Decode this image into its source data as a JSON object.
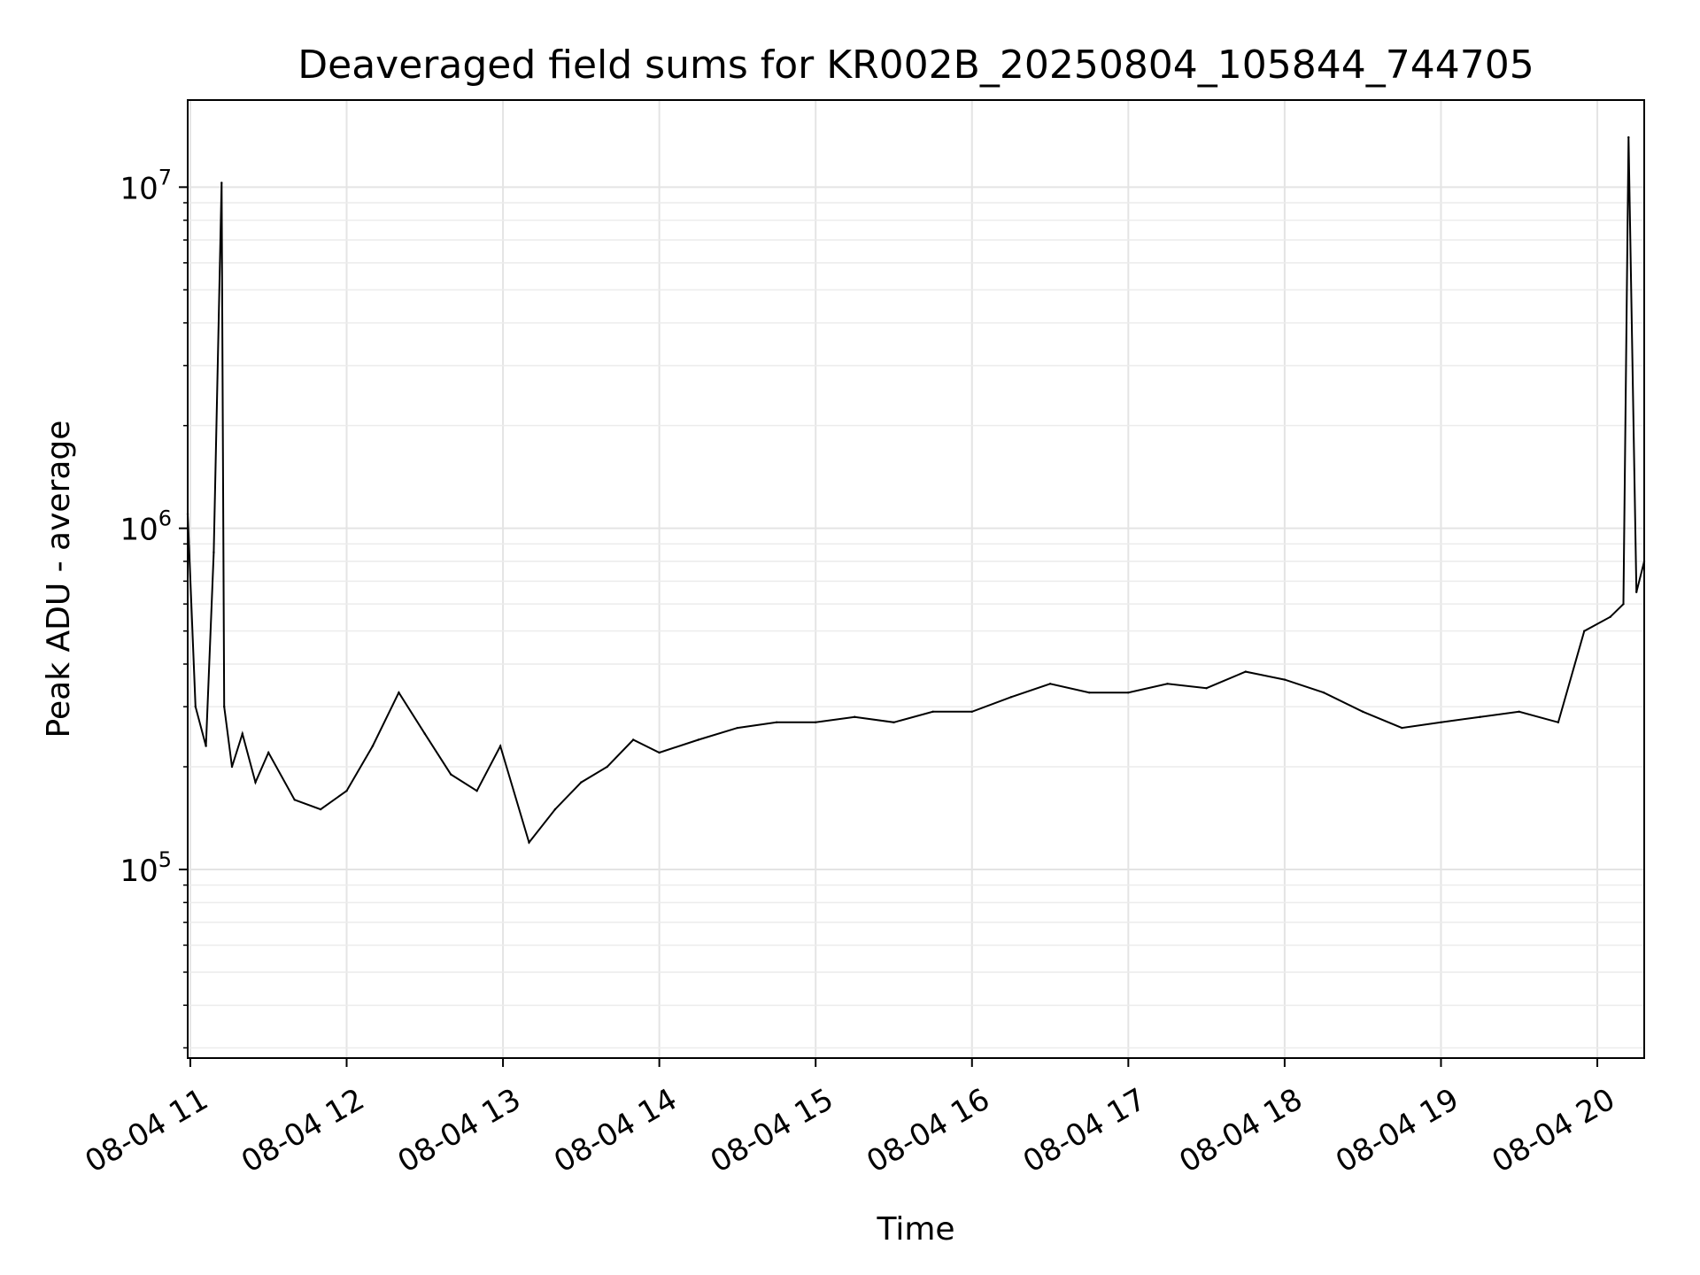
{
  "chart_data": {
    "type": "line",
    "title": "Deaveraged field sums for KR002B_20250804_105844_744705",
    "xlabel": "Time",
    "ylabel": "Peak ADU - average",
    "y_scale": "log",
    "ylim": [
      28000,
      18000000
    ],
    "xlim": [
      "2025-08-04 10:59",
      "2025-08-04 20:18"
    ],
    "x_ticks": [
      {
        "t": "2025-08-04 11:00",
        "label": "08-04 11"
      },
      {
        "t": "2025-08-04 12:00",
        "label": "08-04 12"
      },
      {
        "t": "2025-08-04 13:00",
        "label": "08-04 13"
      },
      {
        "t": "2025-08-04 14:00",
        "label": "08-04 14"
      },
      {
        "t": "2025-08-04 15:00",
        "label": "08-04 15"
      },
      {
        "t": "2025-08-04 16:00",
        "label": "08-04 16"
      },
      {
        "t": "2025-08-04 17:00",
        "label": "08-04 17"
      },
      {
        "t": "2025-08-04 18:00",
        "label": "08-04 18"
      },
      {
        "t": "2025-08-04 19:00",
        "label": "08-04 19"
      },
      {
        "t": "2025-08-04 20:00",
        "label": "08-04 20"
      }
    ],
    "y_ticks": [
      {
        "value": 100000,
        "base": "10",
        "exp": "5"
      },
      {
        "value": 1000000,
        "base": "10",
        "exp": "6"
      },
      {
        "value": 10000000,
        "base": "10",
        "exp": "7"
      }
    ],
    "grid": true,
    "legend": "none",
    "line_color": "#000000",
    "series": [
      {
        "x": [
          "2025-08-04 10:59",
          "2025-08-04 11:02",
          "2025-08-04 11:06",
          "2025-08-04 11:09",
          "2025-08-04 11:12",
          "2025-08-04 11:13",
          "2025-08-04 11:16",
          "2025-08-04 11:20",
          "2025-08-04 11:25",
          "2025-08-04 11:30",
          "2025-08-04 11:40",
          "2025-08-04 11:50",
          "2025-08-04 12:00",
          "2025-08-04 12:10",
          "2025-08-04 12:20",
          "2025-08-04 12:30",
          "2025-08-04 12:40",
          "2025-08-04 12:50",
          "2025-08-04 12:59",
          "2025-08-04 13:10",
          "2025-08-04 13:20",
          "2025-08-04 13:30",
          "2025-08-04 13:40",
          "2025-08-04 13:50",
          "2025-08-04 14:00",
          "2025-08-04 14:15",
          "2025-08-04 14:30",
          "2025-08-04 14:45",
          "2025-08-04 15:00",
          "2025-08-04 15:15",
          "2025-08-04 15:30",
          "2025-08-04 15:45",
          "2025-08-04 16:00",
          "2025-08-04 16:15",
          "2025-08-04 16:30",
          "2025-08-04 16:45",
          "2025-08-04 17:00",
          "2025-08-04 17:15",
          "2025-08-04 17:30",
          "2025-08-04 17:45",
          "2025-08-04 18:00",
          "2025-08-04 18:15",
          "2025-08-04 18:30",
          "2025-08-04 18:45",
          "2025-08-04 19:00",
          "2025-08-04 19:15",
          "2025-08-04 19:30",
          "2025-08-04 19:45",
          "2025-08-04 19:55",
          "2025-08-04 20:05",
          "2025-08-04 20:10",
          "2025-08-04 20:12",
          "2025-08-04 20:15",
          "2025-08-04 20:18"
        ],
        "y": [
          1100000,
          300000,
          230000,
          850000,
          10300000,
          300000,
          200000,
          250000,
          180000,
          220000,
          160000,
          150000,
          170000,
          230000,
          330000,
          250000,
          190000,
          170000,
          230000,
          120000,
          150000,
          180000,
          200000,
          240000,
          220000,
          240000,
          260000,
          270000,
          270000,
          280000,
          270000,
          290000,
          290000,
          320000,
          350000,
          330000,
          330000,
          350000,
          340000,
          380000,
          360000,
          330000,
          290000,
          260000,
          270000,
          280000,
          290000,
          270000,
          500000,
          550000,
          600000,
          14000000,
          650000,
          800000
        ]
      }
    ]
  }
}
